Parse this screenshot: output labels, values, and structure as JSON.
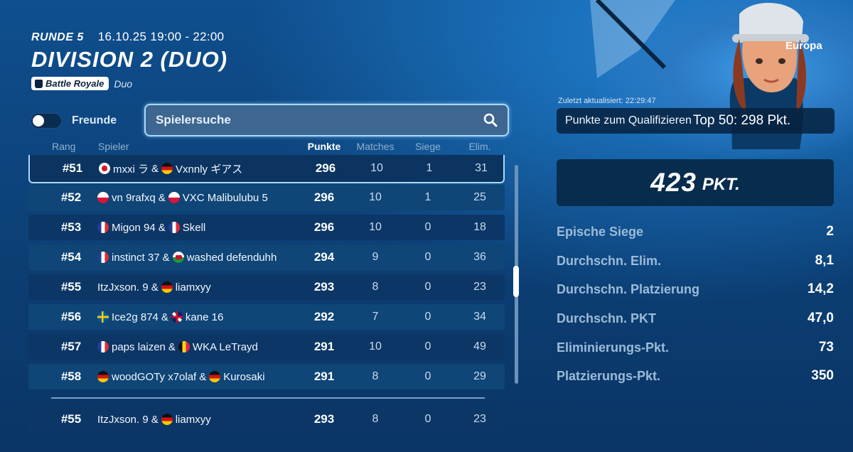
{
  "header": {
    "round": "RUNDE 5",
    "datetime": "16.10.25 19:00 - 22:00",
    "division": "DIVISION 2 (DUO)",
    "mode_badge": "Battle Royale",
    "mode_sub": "Duo",
    "region": "Europa"
  },
  "controls": {
    "friends_toggle_label": "Freunde",
    "friends_toggle_on": false,
    "search_placeholder": "Spielersuche"
  },
  "columns": {
    "rank": "Rang",
    "player": "Spieler",
    "points": "Punkte",
    "matches": "Matches",
    "wins": "Siege",
    "elims": "Elim."
  },
  "rows": [
    {
      "rank": "#51",
      "p1": "mxxi ラ",
      "f1": "jp",
      "p2": "Vxnnly ギアス",
      "f2": "de",
      "points": "296",
      "matches": "10",
      "wins": "1",
      "elims": "31"
    },
    {
      "rank": "#52",
      "p1": "vn 9rafxq",
      "f1": "pl",
      "p2": "VXC Malibulubu 5",
      "f2": "pl",
      "points": "296",
      "matches": "10",
      "wins": "1",
      "elims": "25"
    },
    {
      "rank": "#53",
      "p1": "Migon 94",
      "f1": "fr",
      "p2": "Skell",
      "f2": "fr",
      "points": "296",
      "matches": "10",
      "wins": "0",
      "elims": "18"
    },
    {
      "rank": "#54",
      "p1": "instinct 37",
      "f1": "fr",
      "p2": "washed defenduhh",
      "f2": "wales",
      "points": "294",
      "matches": "9",
      "wins": "0",
      "elims": "36"
    },
    {
      "rank": "#55",
      "p1": "ItzJxson. 9",
      "f1": "",
      "p2": "liamxyy",
      "f2": "de",
      "points": "293",
      "matches": "8",
      "wins": "0",
      "elims": "23"
    },
    {
      "rank": "#56",
      "p1": "Ice2g 874",
      "f1": "se",
      "p2": "kane 16",
      "f2": "gb",
      "points": "292",
      "matches": "7",
      "wins": "0",
      "elims": "34"
    },
    {
      "rank": "#57",
      "p1": "paps laizen",
      "f1": "fr",
      "p2": "WKA LeTrayd",
      "f2": "be",
      "points": "291",
      "matches": "10",
      "wins": "0",
      "elims": "49"
    },
    {
      "rank": "#58",
      "p1": "woodGOTy x7olaf",
      "f1": "de",
      "p2": "Kurosaki",
      "f2": "de",
      "points": "291",
      "matches": "8",
      "wins": "0",
      "elims": "29"
    }
  ],
  "own_row": {
    "rank": "#55",
    "p1": "ItzJxson. 9",
    "f1": "",
    "p2": "liamxyy",
    "f2": "de",
    "points": "293",
    "matches": "8",
    "wins": "0",
    "elims": "23"
  },
  "sidebar": {
    "last_updated": "Zuletzt aktualisiert: 22:29:47",
    "qualify_label": "Punkte zum Qualifizieren",
    "qualify_value": "Top 50: 298 Pkt.",
    "total_points": "423",
    "total_unit": "PKT.",
    "stats": [
      {
        "label": "Epische Siege",
        "value": "2"
      },
      {
        "label": "Durchschn. Elim.",
        "value": "8,1"
      },
      {
        "label": "Durchschn. Platzierung",
        "value": "14,2"
      },
      {
        "label": "Durchschn. PKT",
        "value": "47,0"
      },
      {
        "label": "Eliminierungs-Pkt.",
        "value": "73"
      },
      {
        "label": "Platzierungs-Pkt.",
        "value": "350"
      }
    ]
  },
  "colors": {
    "accent": "#a9d9ff",
    "row_bg": "#0c3666",
    "row_alt_bg": "#0f4577",
    "background": "#0f4f8e"
  }
}
